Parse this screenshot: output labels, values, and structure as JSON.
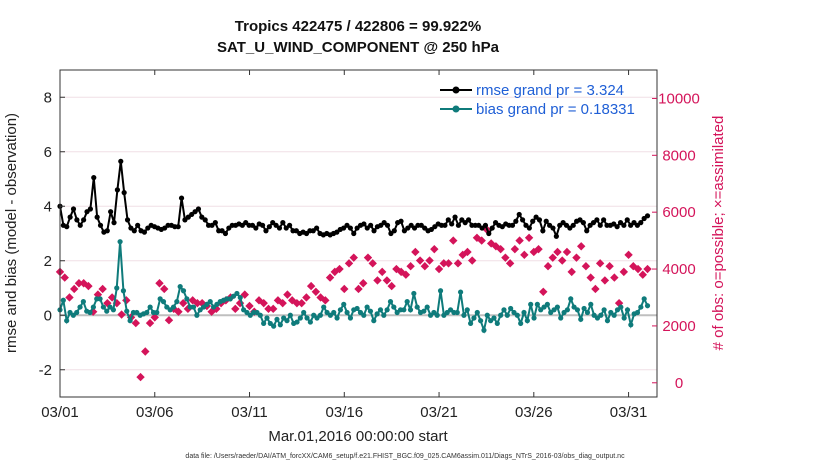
{
  "chart_data": {
    "type": "line",
    "title": "Tropics 422475 / 422806 = 99.922%",
    "subtitle": "SAT_U_WIND_COMPONENT @ 250 hPa",
    "xlabel": "Mar.01,2016 00:00:00 start",
    "ylabel": "rmse and bias (model - observation)",
    "ylabel_right": "# of obs: o=possible; ×=assimilated",
    "footnote": "data file: /Users/raeder/DAI/ATM_forcXX/CAM6_setup/f.e21.FHIST_BGC.f09_025.CAM6assim.011/Diags_NTrS_2016-03/obs_diag_output.nc",
    "xlim": [
      0,
      31.5
    ],
    "ylim": [
      -3,
      9
    ],
    "ylim_right": [
      -500,
      11000
    ],
    "x_ticks": [
      0,
      5,
      10,
      15,
      20,
      25,
      30
    ],
    "x_tick_labels": [
      "03/01",
      "03/06",
      "03/11",
      "03/16",
      "03/21",
      "03/26",
      "03/31"
    ],
    "y_ticks": [
      -2,
      0,
      2,
      4,
      6,
      8
    ],
    "y_tick_labels": [
      "-2",
      "0",
      "2",
      "4",
      "6",
      "8"
    ],
    "y_right_ticks": [
      0,
      2000,
      4000,
      6000,
      8000,
      10000
    ],
    "y_right_tick_labels": [
      "0",
      "2000",
      "4000",
      "6000",
      "8000",
      "10000"
    ],
    "legend": [
      {
        "name": "rmse grand pr = 3.324",
        "color": "#000000"
      },
      {
        "name": "bias grand pr = 0.18331",
        "color": "#0f7b7b"
      }
    ],
    "series": [
      {
        "name": "rmse",
        "color": "#000000",
        "values": [
          4.0,
          3.3,
          3.25,
          3.6,
          3.9,
          3.5,
          3.3,
          3.5,
          3.8,
          3.9,
          5.05,
          3.6,
          3.3,
          3.05,
          3.1,
          3.8,
          3.4,
          4.6,
          5.65,
          4.5,
          3.5,
          3.2,
          3.1,
          3.3,
          3.1,
          3.05,
          3.2,
          3.3,
          3.25,
          3.2,
          3.15,
          3.2,
          3.3,
          3.3,
          3.25,
          3.25,
          4.3,
          3.5,
          3.6,
          3.7,
          3.8,
          3.9,
          3.6,
          3.5,
          3.3,
          3.3,
          3.4,
          3.1,
          3.1,
          3.0,
          3.2,
          3.3,
          3.3,
          3.35,
          3.3,
          3.4,
          3.3,
          3.3,
          3.2,
          3.35,
          3.3,
          3.1,
          3.25,
          3.4,
          3.3,
          3.2,
          3.4,
          3.2,
          3.3,
          3.1,
          3.1,
          3.0,
          3.05,
          3.0,
          3.1,
          3.1,
          3.2,
          3.0,
          2.95,
          3.0,
          2.95,
          3.0,
          3.05,
          3.15,
          3.2,
          3.3,
          3.2,
          3.0,
          3.2,
          3.3,
          3.35,
          3.2,
          3.3,
          3.1,
          3.25,
          3.3,
          3.4,
          3.3,
          3.0,
          3.1,
          3.4,
          3.45,
          3.1,
          3.2,
          3.3,
          3.2,
          3.3,
          3.3,
          3.2,
          3.1,
          3.15,
          3.25,
          3.35,
          3.3,
          3.3,
          3.5,
          3.35,
          3.6,
          3.3,
          3.5,
          3.4,
          3.5,
          3.3,
          3.3,
          3.3,
          3.2,
          3.3,
          3.0,
          3.2,
          3.4,
          3.3,
          3.25,
          3.35,
          3.3,
          3.3,
          3.45,
          3.7,
          3.5,
          3.3,
          3.2,
          3.45,
          3.6,
          3.5,
          3.1,
          3.45,
          3.3,
          3.2,
          2.9,
          3.3,
          3.4,
          3.3,
          3.2,
          3.3,
          3.45,
          3.5,
          3.4,
          3.1,
          3.3,
          3.4,
          3.5,
          3.3,
          3.5,
          3.3,
          3.3,
          3.35,
          3.25,
          3.4,
          3.3,
          3.5,
          3.3,
          3.4,
          3.3,
          3.4,
          3.55,
          3.65
        ]
      },
      {
        "name": "bias",
        "color": "#0f7b7b",
        "values": [
          0.2,
          0.55,
          -0.2,
          0.1,
          0.0,
          0.1,
          0.3,
          0.5,
          0.15,
          0.1,
          0.3,
          0.6,
          0.6,
          0.3,
          0.15,
          0.3,
          0.2,
          1.0,
          2.7,
          0.9,
          0.15,
          -0.2,
          0.1,
          0.1,
          0.0,
          0.05,
          0.1,
          0.3,
          0.1,
          0.1,
          0.6,
          0.5,
          0.3,
          0.2,
          0.3,
          0.5,
          1.05,
          0.9,
          0.6,
          0.3,
          0.3,
          0.0,
          0.2,
          0.3,
          0.4,
          0.5,
          0.3,
          0.4,
          0.5,
          0.55,
          0.6,
          0.6,
          0.7,
          0.8,
          0.65,
          0.2,
          0.1,
          0.0,
          0.1,
          0.1,
          0.0,
          -0.3,
          -0.1,
          -0.3,
          -0.4,
          -0.15,
          -0.35,
          -0.1,
          -0.2,
          0.0,
          -0.3,
          -0.25,
          -0.1,
          0.1,
          -0.1,
          -0.25,
          0.0,
          -0.1,
          0.0,
          0.3,
          0.1,
          0.0,
          0.1,
          -0.1,
          0.2,
          0.4,
          0.1,
          -0.1,
          0.2,
          0.25,
          0.1,
          0.0,
          0.3,
          0.15,
          -0.2,
          0.05,
          0.2,
          0.0,
          0.2,
          0.5,
          0.3,
          0.1,
          0.2,
          0.2,
          0.5,
          0.2,
          0.8,
          0.3,
          0.1,
          0.15,
          0.3,
          0.0,
          0.1,
          0.0,
          0.9,
          0.0,
          0.1,
          0.2,
          0.1,
          0.1,
          0.85,
          0.0,
          0.2,
          -0.3,
          -0.1,
          0.1,
          -0.2,
          -0.55,
          0.0,
          -0.2,
          -0.1,
          -0.3,
          0.0,
          0.2,
          0.0,
          0.25,
          0.1,
          0.0,
          -0.3,
          0.1,
          -0.2,
          0.4,
          -0.1,
          0.4,
          0.2,
          0.3,
          0.4,
          0.1,
          0.2,
          0.3,
          -0.1,
          0.1,
          0.2,
          0.6,
          0.3,
          0.2,
          -0.15,
          0.25,
          0.1,
          0.4,
          0.0,
          -0.1,
          0.0,
          0.2,
          -0.2,
          0.1,
          0.0,
          0.2,
          0.3,
          -0.1,
          0.2,
          -0.35,
          0.05,
          0.1,
          0.3,
          0.6,
          0.35
        ]
      },
      {
        "name": "# of obs assimilated",
        "color": "#d4145a",
        "marker": "diamond",
        "x": [
          0,
          0.25,
          0.5,
          0.75,
          1.0,
          1.25,
          1.5,
          1.75,
          2.0,
          2.25,
          2.5,
          2.75,
          3.0,
          3.25,
          3.5,
          3.75,
          4.0,
          4.25,
          4.5,
          4.75,
          5.0,
          5.25,
          5.5,
          5.75,
          6.0,
          6.25,
          6.5,
          6.75,
          7.0,
          7.25,
          7.5,
          7.75,
          8.0,
          8.25,
          8.5,
          8.75,
          9.0,
          9.25,
          9.5,
          9.75,
          10.0,
          10.25,
          10.5,
          10.75,
          11.0,
          11.25,
          11.5,
          11.75,
          12.0,
          12.25,
          12.5,
          12.75,
          13.0,
          13.25,
          13.5,
          13.75,
          14.0,
          14.25,
          14.5,
          14.75,
          15.0,
          15.25,
          15.5,
          15.75,
          16.0,
          16.25,
          16.5,
          16.75,
          17.0,
          17.25,
          17.5,
          17.75,
          18.0,
          18.25,
          18.5,
          18.75,
          19.0,
          19.25,
          19.5,
          19.75,
          20.0,
          20.25,
          20.5,
          20.75,
          21.0,
          21.25,
          21.5,
          21.75,
          22.0,
          22.25,
          22.5,
          22.75,
          23.0,
          23.25,
          23.5,
          23.75,
          24.0,
          24.25,
          24.5,
          24.75,
          25.0,
          25.25,
          25.5,
          25.75,
          26.0,
          26.25,
          26.5,
          26.75,
          27.0,
          27.25,
          27.5,
          27.75,
          28.0,
          28.25,
          28.5,
          28.75,
          29.0,
          29.25,
          29.5,
          29.75,
          30.0,
          30.25,
          30.5,
          30.75,
          31.0
        ],
        "values": [
          3900,
          3700,
          3000,
          3300,
          3500,
          3500,
          3400,
          2500,
          3100,
          3300,
          2800,
          3000,
          2800,
          2400,
          2900,
          2300,
          2100,
          200,
          1100,
          2100,
          2300,
          3500,
          3300,
          2200,
          2600,
          2500,
          2800,
          2600,
          2900,
          2800,
          2800,
          2700,
          2500,
          2600,
          2800,
          2900,
          3000,
          2600,
          2800,
          3100,
          2700,
          2500,
          2900,
          2800,
          2600,
          2600,
          2900,
          2800,
          3100,
          2900,
          2800,
          2800,
          3000,
          3400,
          3200,
          3000,
          2900,
          3700,
          3900,
          4000,
          3300,
          4200,
          4400,
          3300,
          3500,
          4400,
          4200,
          3600,
          3900,
          3600,
          3400,
          4000,
          3900,
          3800,
          4100,
          4600,
          4300,
          4100,
          4300,
          4700,
          4000,
          4200,
          4200,
          5000,
          4200,
          4500,
          4600,
          4300,
          5100,
          5000,
          5400,
          4900,
          4800,
          4700,
          4400,
          4200,
          4700,
          5000,
          4500,
          5100,
          4600,
          4700,
          3200,
          4100,
          4400,
          4600,
          4300,
          4600,
          3900,
          4400,
          4800,
          4100,
          3700,
          3300,
          4200,
          3600,
          4100,
          3700,
          2800,
          3900,
          4500,
          4100,
          4000,
          3800,
          4000
        ]
      }
    ]
  }
}
